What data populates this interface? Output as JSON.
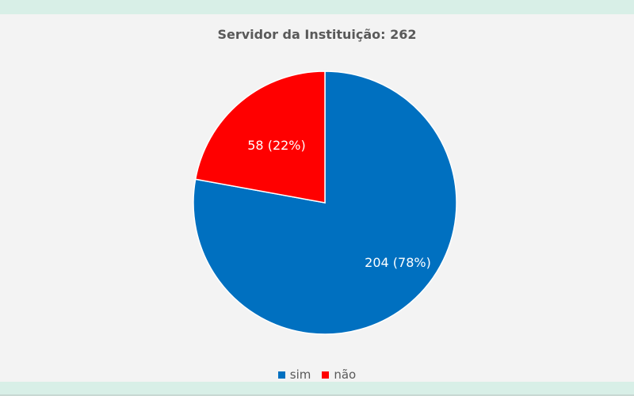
{
  "chart_data": {
    "type": "pie",
    "title": "Servidor da Instituição: 262",
    "total": 262,
    "categories": [
      "sim",
      "não"
    ],
    "values": [
      204,
      58
    ],
    "percentages": [
      78,
      22
    ],
    "labels": [
      "204 (78%)",
      "58 (22%)"
    ],
    "colors": [
      "#0070c0",
      "#ff0000"
    ],
    "legend_position": "bottom",
    "start_angle": "12 o'clock, sim clockwise"
  },
  "legend": {
    "items": [
      {
        "label": "sim",
        "color": "#0070c0"
      },
      {
        "label": "não",
        "color": "#ff0000"
      }
    ]
  }
}
